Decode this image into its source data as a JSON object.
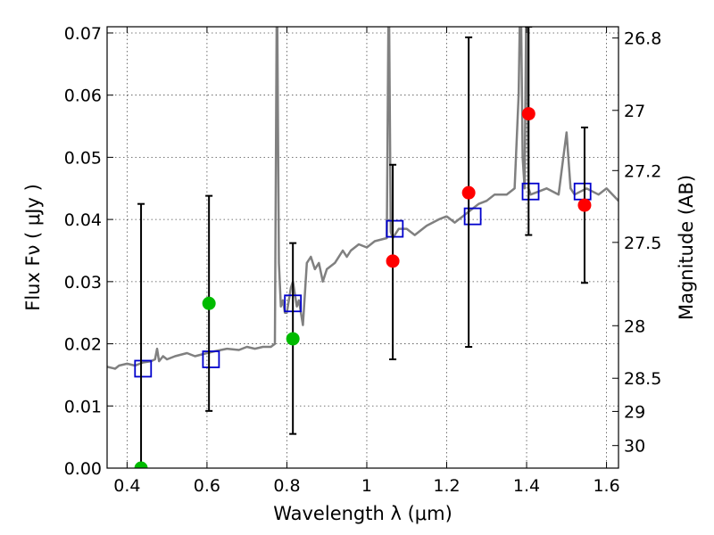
{
  "chart_data": {
    "type": "scatter",
    "xlabel": "Wavelength  λ (μm)",
    "ylabel": "Flux  Fν  ( μJy )",
    "y2label": "Magnitude (AB)",
    "xlim": [
      0.35,
      1.63
    ],
    "ylim": [
      0.0,
      0.071
    ],
    "xticks": [
      0.4,
      0.6,
      0.8,
      1.0,
      1.2,
      1.4,
      1.6
    ],
    "xtick_labels": [
      "0.4",
      "0.6",
      "0.8",
      "1",
      "1.2",
      "1.4",
      "1.6"
    ],
    "yticks": [
      0.0,
      0.01,
      0.02,
      0.03,
      0.04,
      0.05,
      0.06,
      0.07
    ],
    "ytick_labels": [
      "0.00",
      "0.01",
      "0.02",
      "0.03",
      "0.04",
      "0.05",
      "0.06",
      "0.07"
    ],
    "y2ticks": [
      26.8,
      27,
      27.2,
      27.5,
      28,
      28.5,
      29,
      30
    ],
    "y2tick_labels": [
      "26.8",
      "27",
      "27.2",
      "27.5",
      "28",
      "28.5",
      "29",
      "30"
    ],
    "grid": true,
    "colors": {
      "spectrum": "#808080",
      "model_box": "#0000cc",
      "detected_green": "#00bb00",
      "detected_red": "#ff0000",
      "errorbar": "#000000"
    },
    "series": [
      {
        "type": "line",
        "x": [
          0.35,
          0.37,
          0.38,
          0.4,
          0.42,
          0.44,
          0.46,
          0.47,
          0.475,
          0.48,
          0.49,
          0.5,
          0.52,
          0.55,
          0.57,
          0.6,
          0.62,
          0.65,
          0.68,
          0.7,
          0.72,
          0.74,
          0.76,
          0.77,
          0.775,
          0.78,
          0.785,
          0.79,
          0.795,
          0.8,
          0.81,
          0.815,
          0.82,
          0.825,
          0.83,
          0.84,
          0.85,
          0.86,
          0.87,
          0.88,
          0.89,
          0.9,
          0.92,
          0.94,
          0.95,
          0.96,
          0.98,
          1.0,
          1.02,
          1.05,
          1.055,
          1.06,
          1.065,
          1.08,
          1.1,
          1.12,
          1.15,
          1.18,
          1.2,
          1.22,
          1.25,
          1.28,
          1.3,
          1.32,
          1.35,
          1.37,
          1.38,
          1.385,
          1.39,
          1.395,
          1.4,
          1.405,
          1.41,
          1.43,
          1.45,
          1.48,
          1.49,
          1.5,
          1.51,
          1.52,
          1.55,
          1.58,
          1.6,
          1.63
        ],
        "y": [
          0.0163,
          0.016,
          0.0165,
          0.0168,
          0.0165,
          0.017,
          0.0172,
          0.0175,
          0.0192,
          0.0172,
          0.018,
          0.0175,
          0.018,
          0.0185,
          0.018,
          0.0185,
          0.0188,
          0.0192,
          0.019,
          0.0195,
          0.0192,
          0.0195,
          0.0195,
          0.02,
          0.08,
          0.033,
          0.026,
          0.027,
          0.025,
          0.025,
          0.029,
          0.03,
          0.028,
          0.026,
          0.027,
          0.023,
          0.033,
          0.034,
          0.032,
          0.033,
          0.03,
          0.032,
          0.033,
          0.035,
          0.034,
          0.035,
          0.036,
          0.0355,
          0.0365,
          0.037,
          0.08,
          0.038,
          0.037,
          0.0385,
          0.0385,
          0.0375,
          0.039,
          0.04,
          0.0405,
          0.0395,
          0.041,
          0.0425,
          0.043,
          0.044,
          0.044,
          0.045,
          0.06,
          0.08,
          0.05,
          0.045,
          0.08,
          0.045,
          0.044,
          0.0445,
          0.045,
          0.044,
          0.049,
          0.054,
          0.045,
          0.044,
          0.045,
          0.044,
          0.045,
          0.043
        ]
      },
      {
        "type": "scatter-square",
        "x": [
          0.44,
          0.61,
          0.815,
          1.07,
          1.265,
          1.41,
          1.54
        ],
        "y": [
          0.016,
          0.0175,
          0.0265,
          0.0385,
          0.0405,
          0.0445,
          0.0445
        ]
      },
      {
        "type": "scatter-errorbar",
        "x": [
          0.435,
          0.605,
          0.815,
          1.065,
          1.255,
          1.405,
          1.545
        ],
        "y": [
          0.0,
          0.0265,
          0.0208,
          0.0333,
          0.0443,
          0.057,
          0.0423
        ],
        "ylow": [
          0.0,
          0.0092,
          0.0055,
          0.0175,
          0.0195,
          0.0375,
          0.0298
        ],
        "yhigh": [
          0.0425,
          0.0438,
          0.0362,
          0.0488,
          0.0693,
          0.071,
          0.0548
        ],
        "point_colors": [
          "detected_green",
          "detected_green",
          "detected_green",
          "detected_red",
          "detected_red",
          "detected_red",
          "detected_red"
        ]
      }
    ]
  }
}
